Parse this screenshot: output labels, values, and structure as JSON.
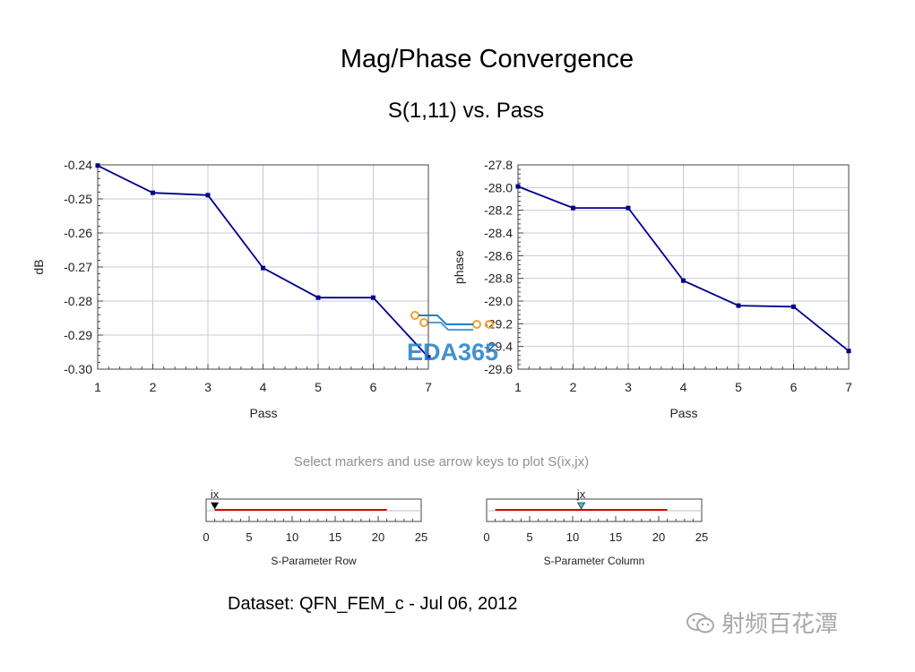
{
  "page": {
    "title": "Mag/Phase Convergence",
    "subtitle": "S(1,11) vs. Pass",
    "instructions": "Select markers and use arrow keys to plot S(ix,jx)",
    "dataset": "Dataset: QFN_FEM_c - Jul 06, 2012"
  },
  "watermarks": {
    "center_logo": "EDA365",
    "bottom_right": "射频百花潭"
  },
  "colors": {
    "series": "#00008b",
    "grid": "#c8c8dc",
    "slider_line": "#d00000",
    "marker_row": "#000000",
    "marker_col": "#40c0c8",
    "logo": "#1e7fc8",
    "logo_accent": "#f0a030"
  },
  "chart_data": [
    {
      "type": "line",
      "xlabel": "Pass",
      "ylabel": "dB",
      "x": [
        1,
        2,
        3,
        4,
        5,
        6,
        7
      ],
      "values": [
        -0.2402,
        -0.2482,
        -0.2489,
        -0.2703,
        -0.279,
        -0.279,
        -0.2965
      ],
      "xlim": [
        1,
        7
      ],
      "ylim": [
        -0.3,
        -0.24
      ],
      "xticks": [
        "1",
        "2",
        "3",
        "4",
        "5",
        "6",
        "7"
      ],
      "yticks": [
        "-0.24",
        "-0.25",
        "-0.26",
        "-0.27",
        "-0.28",
        "-0.29",
        "-0.30"
      ],
      "grid": true
    },
    {
      "type": "line",
      "xlabel": "Pass",
      "ylabel": "phase",
      "x": [
        1,
        2,
        3,
        4,
        5,
        6,
        7
      ],
      "values": [
        -27.99,
        -28.18,
        -28.18,
        -28.82,
        -29.04,
        -29.05,
        -29.44
      ],
      "xlim": [
        1,
        7
      ],
      "ylim": [
        -29.6,
        -27.8
      ],
      "xticks": [
        "1",
        "2",
        "3",
        "4",
        "5",
        "6",
        "7"
      ],
      "yticks": [
        "-27.8",
        "-28.0",
        "-28.2",
        "-28.4",
        "-28.6",
        "-28.8",
        "-29.0",
        "-29.2",
        "-29.4",
        "-29.6"
      ],
      "grid": true
    }
  ],
  "sliders": [
    {
      "label": "S-Parameter Row",
      "marker_label": "ix",
      "range": [
        0,
        25
      ],
      "value": 1,
      "line_range": [
        1,
        21
      ],
      "ticks": [
        "0",
        "5",
        "10",
        "15",
        "20",
        "25"
      ]
    },
    {
      "label": "S-Parameter Column",
      "marker_label": "jx",
      "range": [
        0,
        25
      ],
      "value": 11,
      "line_range": [
        1,
        21
      ],
      "ticks": [
        "0",
        "5",
        "10",
        "15",
        "20",
        "25"
      ]
    }
  ]
}
